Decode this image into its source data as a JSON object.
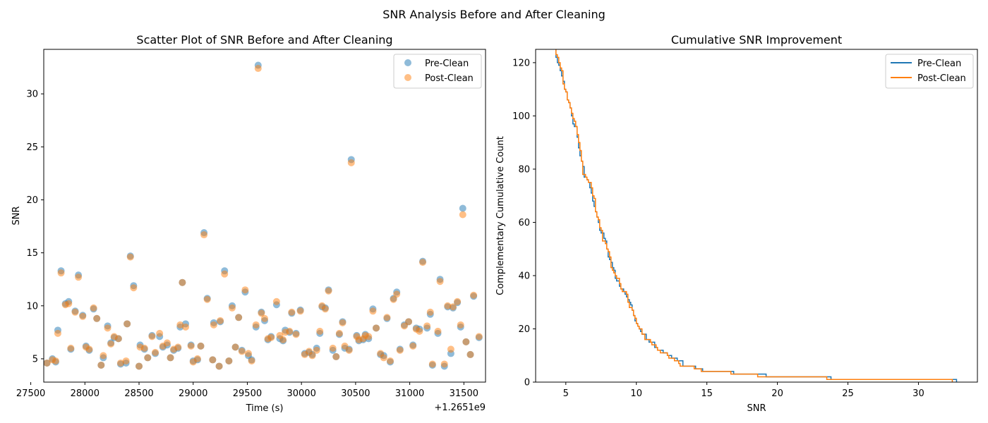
{
  "figure": {
    "suptitle": "SNR Analysis Before and After Cleaning"
  },
  "chart_data": [
    {
      "type": "scatter",
      "title": "Scatter Plot of SNR Before and After Cleaning",
      "xlabel": "Time (s)",
      "ylabel": "SNR",
      "offset_text": "+1.2651e9",
      "xlim": [
        27620,
        31700
      ],
      "ylim": [
        2.8,
        34.2
      ],
      "xticks": [
        27500,
        28000,
        28500,
        29000,
        29500,
        30000,
        30500,
        31000,
        31500
      ],
      "yticks": [
        5,
        10,
        15,
        20,
        25,
        30
      ],
      "grid": false,
      "legend_loc": "upper right",
      "series": [
        {
          "name": "Pre-Clean",
          "color": "#1f77b4",
          "points": [
            [
              27650,
              4.6
            ],
            [
              27700,
              5.0
            ],
            [
              27730,
              4.7
            ],
            [
              27750,
              7.7
            ],
            [
              27780,
              13.3
            ],
            [
              27820,
              10.2
            ],
            [
              27850,
              10.4
            ],
            [
              27870,
              5.9
            ],
            [
              27910,
              9.5
            ],
            [
              27940,
              12.9
            ],
            [
              27980,
              9.1
            ],
            [
              28010,
              6.2
            ],
            [
              28040,
              5.8
            ],
            [
              28080,
              9.7
            ],
            [
              28110,
              8.8
            ],
            [
              28150,
              4.4
            ],
            [
              28170,
              5.1
            ],
            [
              28210,
              8.1
            ],
            [
              28240,
              6.5
            ],
            [
              28270,
              7.0
            ],
            [
              28310,
              6.9
            ],
            [
              28330,
              4.5
            ],
            [
              28380,
              4.6
            ],
            [
              28390,
              8.3
            ],
            [
              28420,
              14.7
            ],
            [
              28450,
              11.9
            ],
            [
              28500,
              4.3
            ],
            [
              28510,
              6.3
            ],
            [
              28550,
              5.9
            ],
            [
              28580,
              5.1
            ],
            [
              28620,
              7.2
            ],
            [
              28650,
              5.5
            ],
            [
              28690,
              7.1
            ],
            [
              28720,
              6.1
            ],
            [
              28760,
              6.3
            ],
            [
              28790,
              5.1
            ],
            [
              28820,
              5.8
            ],
            [
              28860,
              6.0
            ],
            [
              28880,
              8.0
            ],
            [
              28900,
              12.2
            ],
            [
              28930,
              8.3
            ],
            [
              28980,
              6.3
            ],
            [
              29000,
              4.8
            ],
            [
              29040,
              4.9
            ],
            [
              29070,
              6.2
            ],
            [
              29100,
              16.9
            ],
            [
              29130,
              10.7
            ],
            [
              29180,
              4.9
            ],
            [
              29190,
              8.4
            ],
            [
              29240,
              4.3
            ],
            [
              29250,
              8.5
            ],
            [
              29290,
              13.3
            ],
            [
              29330,
              4.8
            ],
            [
              29360,
              10.0
            ],
            [
              29390,
              6.1
            ],
            [
              29420,
              8.9
            ],
            [
              29450,
              5.8
            ],
            [
              29480,
              11.3
            ],
            [
              29510,
              5.3
            ],
            [
              29540,
              4.9
            ],
            [
              29580,
              8.0
            ],
            [
              29600,
              32.7
            ],
            [
              29630,
              9.4
            ],
            [
              29660,
              8.6
            ],
            [
              29690,
              6.8
            ],
            [
              29720,
              7.1
            ],
            [
              29770,
              10.1
            ],
            [
              29800,
              6.9
            ],
            [
              29830,
              6.7
            ],
            [
              29850,
              7.7
            ],
            [
              29890,
              7.5
            ],
            [
              29910,
              9.3
            ],
            [
              29950,
              7.4
            ],
            [
              29990,
              9.6
            ],
            [
              30030,
              5.5
            ],
            [
              30070,
              5.6
            ],
            [
              30100,
              5.4
            ],
            [
              30140,
              6.0
            ],
            [
              30170,
              7.4
            ],
            [
              30190,
              9.9
            ],
            [
              30220,
              9.8
            ],
            [
              30250,
              11.5
            ],
            [
              30290,
              5.8
            ],
            [
              30320,
              5.2
            ],
            [
              30350,
              7.3
            ],
            [
              30380,
              8.5
            ],
            [
              30400,
              6.0
            ],
            [
              30440,
              5.9
            ],
            [
              30460,
              23.8
            ],
            [
              30510,
              7.2
            ],
            [
              30530,
              6.7
            ],
            [
              30570,
              6.8
            ],
            [
              30590,
              7.3
            ],
            [
              30620,
              6.9
            ],
            [
              30660,
              9.7
            ],
            [
              30690,
              7.9
            ],
            [
              30730,
              5.4
            ],
            [
              30760,
              5.3
            ],
            [
              30790,
              8.8
            ],
            [
              30820,
              4.7
            ],
            [
              30850,
              10.7
            ],
            [
              30880,
              11.3
            ],
            [
              30910,
              5.9
            ],
            [
              30950,
              8.2
            ],
            [
              30990,
              8.5
            ],
            [
              31030,
              6.3
            ],
            [
              31060,
              7.9
            ],
            [
              31090,
              7.8
            ],
            [
              31120,
              14.2
            ],
            [
              31160,
              7.9
            ],
            [
              31190,
              9.2
            ],
            [
              31210,
              4.4
            ],
            [
              31260,
              7.4
            ],
            [
              31280,
              12.5
            ],
            [
              31320,
              4.3
            ],
            [
              31350,
              9.9
            ],
            [
              31380,
              5.5
            ],
            [
              31400,
              9.8
            ],
            [
              31440,
              10.3
            ],
            [
              31470,
              8.0
            ],
            [
              31490,
              19.2
            ],
            [
              31520,
              6.6
            ],
            [
              31560,
              5.4
            ],
            [
              31590,
              10.9
            ],
            [
              31640,
              7.0
            ]
          ]
        },
        {
          "name": "Post-Clean",
          "color": "#ff7f0e",
          "points": [
            [
              27650,
              4.6
            ],
            [
              27700,
              4.9
            ],
            [
              27730,
              4.8
            ],
            [
              27750,
              7.4
            ],
            [
              27780,
              13.1
            ],
            [
              27820,
              10.1
            ],
            [
              27850,
              10.2
            ],
            [
              27870,
              6.0
            ],
            [
              27910,
              9.4
            ],
            [
              27940,
              12.7
            ],
            [
              27980,
              9.0
            ],
            [
              28010,
              6.1
            ],
            [
              28040,
              5.9
            ],
            [
              28080,
              9.8
            ],
            [
              28110,
              8.8
            ],
            [
              28150,
              4.4
            ],
            [
              28170,
              5.3
            ],
            [
              28210,
              7.9
            ],
            [
              28240,
              6.4
            ],
            [
              28270,
              7.1
            ],
            [
              28310,
              6.9
            ],
            [
              28330,
              4.6
            ],
            [
              28380,
              4.8
            ],
            [
              28390,
              8.3
            ],
            [
              28420,
              14.6
            ],
            [
              28450,
              11.7
            ],
            [
              28500,
              4.3
            ],
            [
              28510,
              6.1
            ],
            [
              28550,
              6.0
            ],
            [
              28580,
              5.1
            ],
            [
              28620,
              7.1
            ],
            [
              28650,
              5.6
            ],
            [
              28690,
              7.4
            ],
            [
              28720,
              6.2
            ],
            [
              28760,
              6.5
            ],
            [
              28790,
              5.1
            ],
            [
              28820,
              5.9
            ],
            [
              28860,
              6.1
            ],
            [
              28880,
              8.2
            ],
            [
              28900,
              12.2
            ],
            [
              28930,
              8.0
            ],
            [
              28980,
              6.2
            ],
            [
              29000,
              4.7
            ],
            [
              29040,
              5.0
            ],
            [
              29070,
              6.2
            ],
            [
              29100,
              16.7
            ],
            [
              29130,
              10.6
            ],
            [
              29180,
              4.9
            ],
            [
              29190,
              8.2
            ],
            [
              29240,
              4.3
            ],
            [
              29250,
              8.6
            ],
            [
              29290,
              13.0
            ],
            [
              29330,
              4.8
            ],
            [
              29360,
              9.8
            ],
            [
              29390,
              6.1
            ],
            [
              29420,
              8.9
            ],
            [
              29450,
              5.7
            ],
            [
              29480,
              11.5
            ],
            [
              29510,
              5.5
            ],
            [
              29540,
              4.8
            ],
            [
              29580,
              8.2
            ],
            [
              29600,
              32.4
            ],
            [
              29630,
              9.3
            ],
            [
              29660,
              8.8
            ],
            [
              29690,
              6.9
            ],
            [
              29720,
              7.0
            ],
            [
              29770,
              10.4
            ],
            [
              29800,
              7.2
            ],
            [
              29830,
              6.8
            ],
            [
              29850,
              7.5
            ],
            [
              29890,
              7.6
            ],
            [
              29910,
              9.4
            ],
            [
              29950,
              7.3
            ],
            [
              29990,
              9.5
            ],
            [
              30030,
              5.4
            ],
            [
              30070,
              5.7
            ],
            [
              30100,
              5.3
            ],
            [
              30140,
              5.8
            ],
            [
              30170,
              7.6
            ],
            [
              30190,
              10.0
            ],
            [
              30220,
              9.7
            ],
            [
              30250,
              11.4
            ],
            [
              30290,
              6.0
            ],
            [
              30320,
              5.2
            ],
            [
              30350,
              7.4
            ],
            [
              30380,
              8.4
            ],
            [
              30400,
              6.2
            ],
            [
              30440,
              5.8
            ],
            [
              30460,
              23.5
            ],
            [
              30510,
              7.1
            ],
            [
              30530,
              6.8
            ],
            [
              30570,
              6.9
            ],
            [
              30590,
              7.2
            ],
            [
              30620,
              7.1
            ],
            [
              30660,
              9.5
            ],
            [
              30690,
              7.9
            ],
            [
              30730,
              5.5
            ],
            [
              30760,
              5.1
            ],
            [
              30790,
              8.9
            ],
            [
              30820,
              4.8
            ],
            [
              30850,
              10.6
            ],
            [
              30880,
              11.1
            ],
            [
              30910,
              5.8
            ],
            [
              30950,
              8.1
            ],
            [
              30990,
              8.5
            ],
            [
              31030,
              6.2
            ],
            [
              31060,
              7.8
            ],
            [
              31090,
              7.6
            ],
            [
              31120,
              14.1
            ],
            [
              31160,
              8.1
            ],
            [
              31190,
              9.4
            ],
            [
              31210,
              4.5
            ],
            [
              31260,
              7.6
            ],
            [
              31280,
              12.3
            ],
            [
              31320,
              4.5
            ],
            [
              31350,
              10.0
            ],
            [
              31380,
              5.9
            ],
            [
              31400,
              9.9
            ],
            [
              31440,
              10.4
            ],
            [
              31470,
              8.2
            ],
            [
              31490,
              18.6
            ],
            [
              31520,
              6.6
            ],
            [
              31560,
              5.4
            ],
            [
              31590,
              11.0
            ],
            [
              31640,
              7.1
            ]
          ]
        }
      ]
    },
    {
      "type": "line",
      "subtype": "step",
      "title": "Cumulative SNR Improvement",
      "xlabel": "SNR",
      "ylabel": "Complementary Cumulative Count",
      "xlim": [
        2.86,
        34.18
      ],
      "ylim": [
        0,
        125
      ],
      "xticks": [
        5,
        10,
        15,
        20,
        25,
        30
      ],
      "yticks": [
        0,
        20,
        40,
        60,
        80,
        100,
        120
      ],
      "grid": false,
      "legend_loc": "upper right",
      "series": [
        {
          "name": "Pre-Clean",
          "color": "#1f77b4"
        },
        {
          "name": "Post-Clean",
          "color": "#ff7f0e"
        }
      ]
    }
  ]
}
